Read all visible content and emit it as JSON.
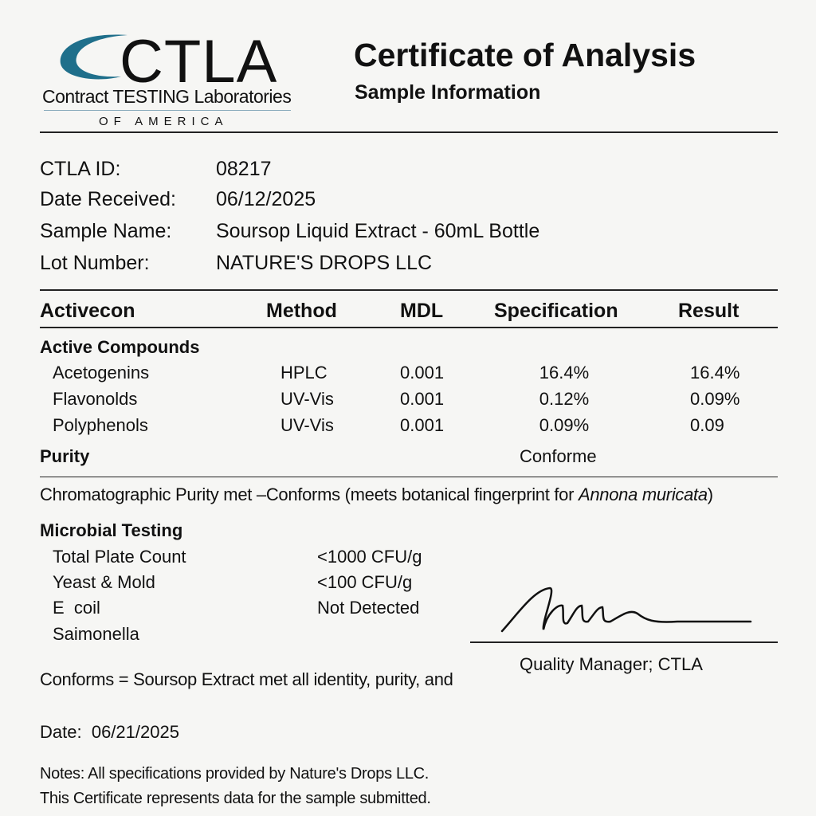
{
  "logo": {
    "mark": "CTLA",
    "name": "Contract TESTING Laboratories",
    "tagline": "OF AMERICA",
    "accent": "#1f6f8b"
  },
  "header": {
    "title": "Certificate of Analysis",
    "subtitle": "Sample Information"
  },
  "sample": [
    {
      "label": "CTLA ID:",
      "value": "08217"
    },
    {
      "label": "Date Received:",
      "value": "06/12/2025"
    },
    {
      "label": "Sample Name:",
      "value": "Soursop Liquid Extract - 60mL Bottle"
    },
    {
      "label": "Lot Number:",
      "value": "NATURE'S DROPS LLC"
    }
  ],
  "table": {
    "headers": [
      "Activecon",
      "Method",
      "MDL",
      "Specification",
      "Result"
    ],
    "section": "Active Compounds",
    "rows": [
      [
        "Acetogenins",
        "HPLC",
        "0.001",
        "16.4%",
        "16.4%"
      ],
      [
        "Flavonolds",
        "UV-Vis",
        "0.001",
        "0.12%",
        "0.09%"
      ],
      [
        "Polyphenols",
        "UV-Vis",
        "0.001",
        "0.09%",
        "0.09"
      ]
    ],
    "purity_label": "Purity",
    "purity_value": "Conforme"
  },
  "chromatographic": {
    "text": "Chromatographic Purity met –Conforms (meets botanical fingerprint for ",
    "species": "Annona muricata",
    "close": ")"
  },
  "microbial": {
    "title": "Microbial Testing",
    "rows": [
      {
        "name": "Total Plate Count",
        "value": "<1000 CFU/g"
      },
      {
        "name": "Yeast & Mold",
        "value": "<100 CFU/g"
      },
      {
        "name": "E  coil",
        "value": "Not Detected"
      },
      {
        "name": "Saimonella",
        "value": ""
      }
    ]
  },
  "signature": {
    "title": "Quality Manager; CTLA"
  },
  "conclusion": "Conforms = Soursop Extract met all identity, purity, and",
  "date": {
    "label": "Date:",
    "value": "06/21/2025"
  },
  "notes": [
    "Notes: All specifications provided by Nature's Drops LLC.",
    "This Certificate represents data for the sample submitted."
  ]
}
